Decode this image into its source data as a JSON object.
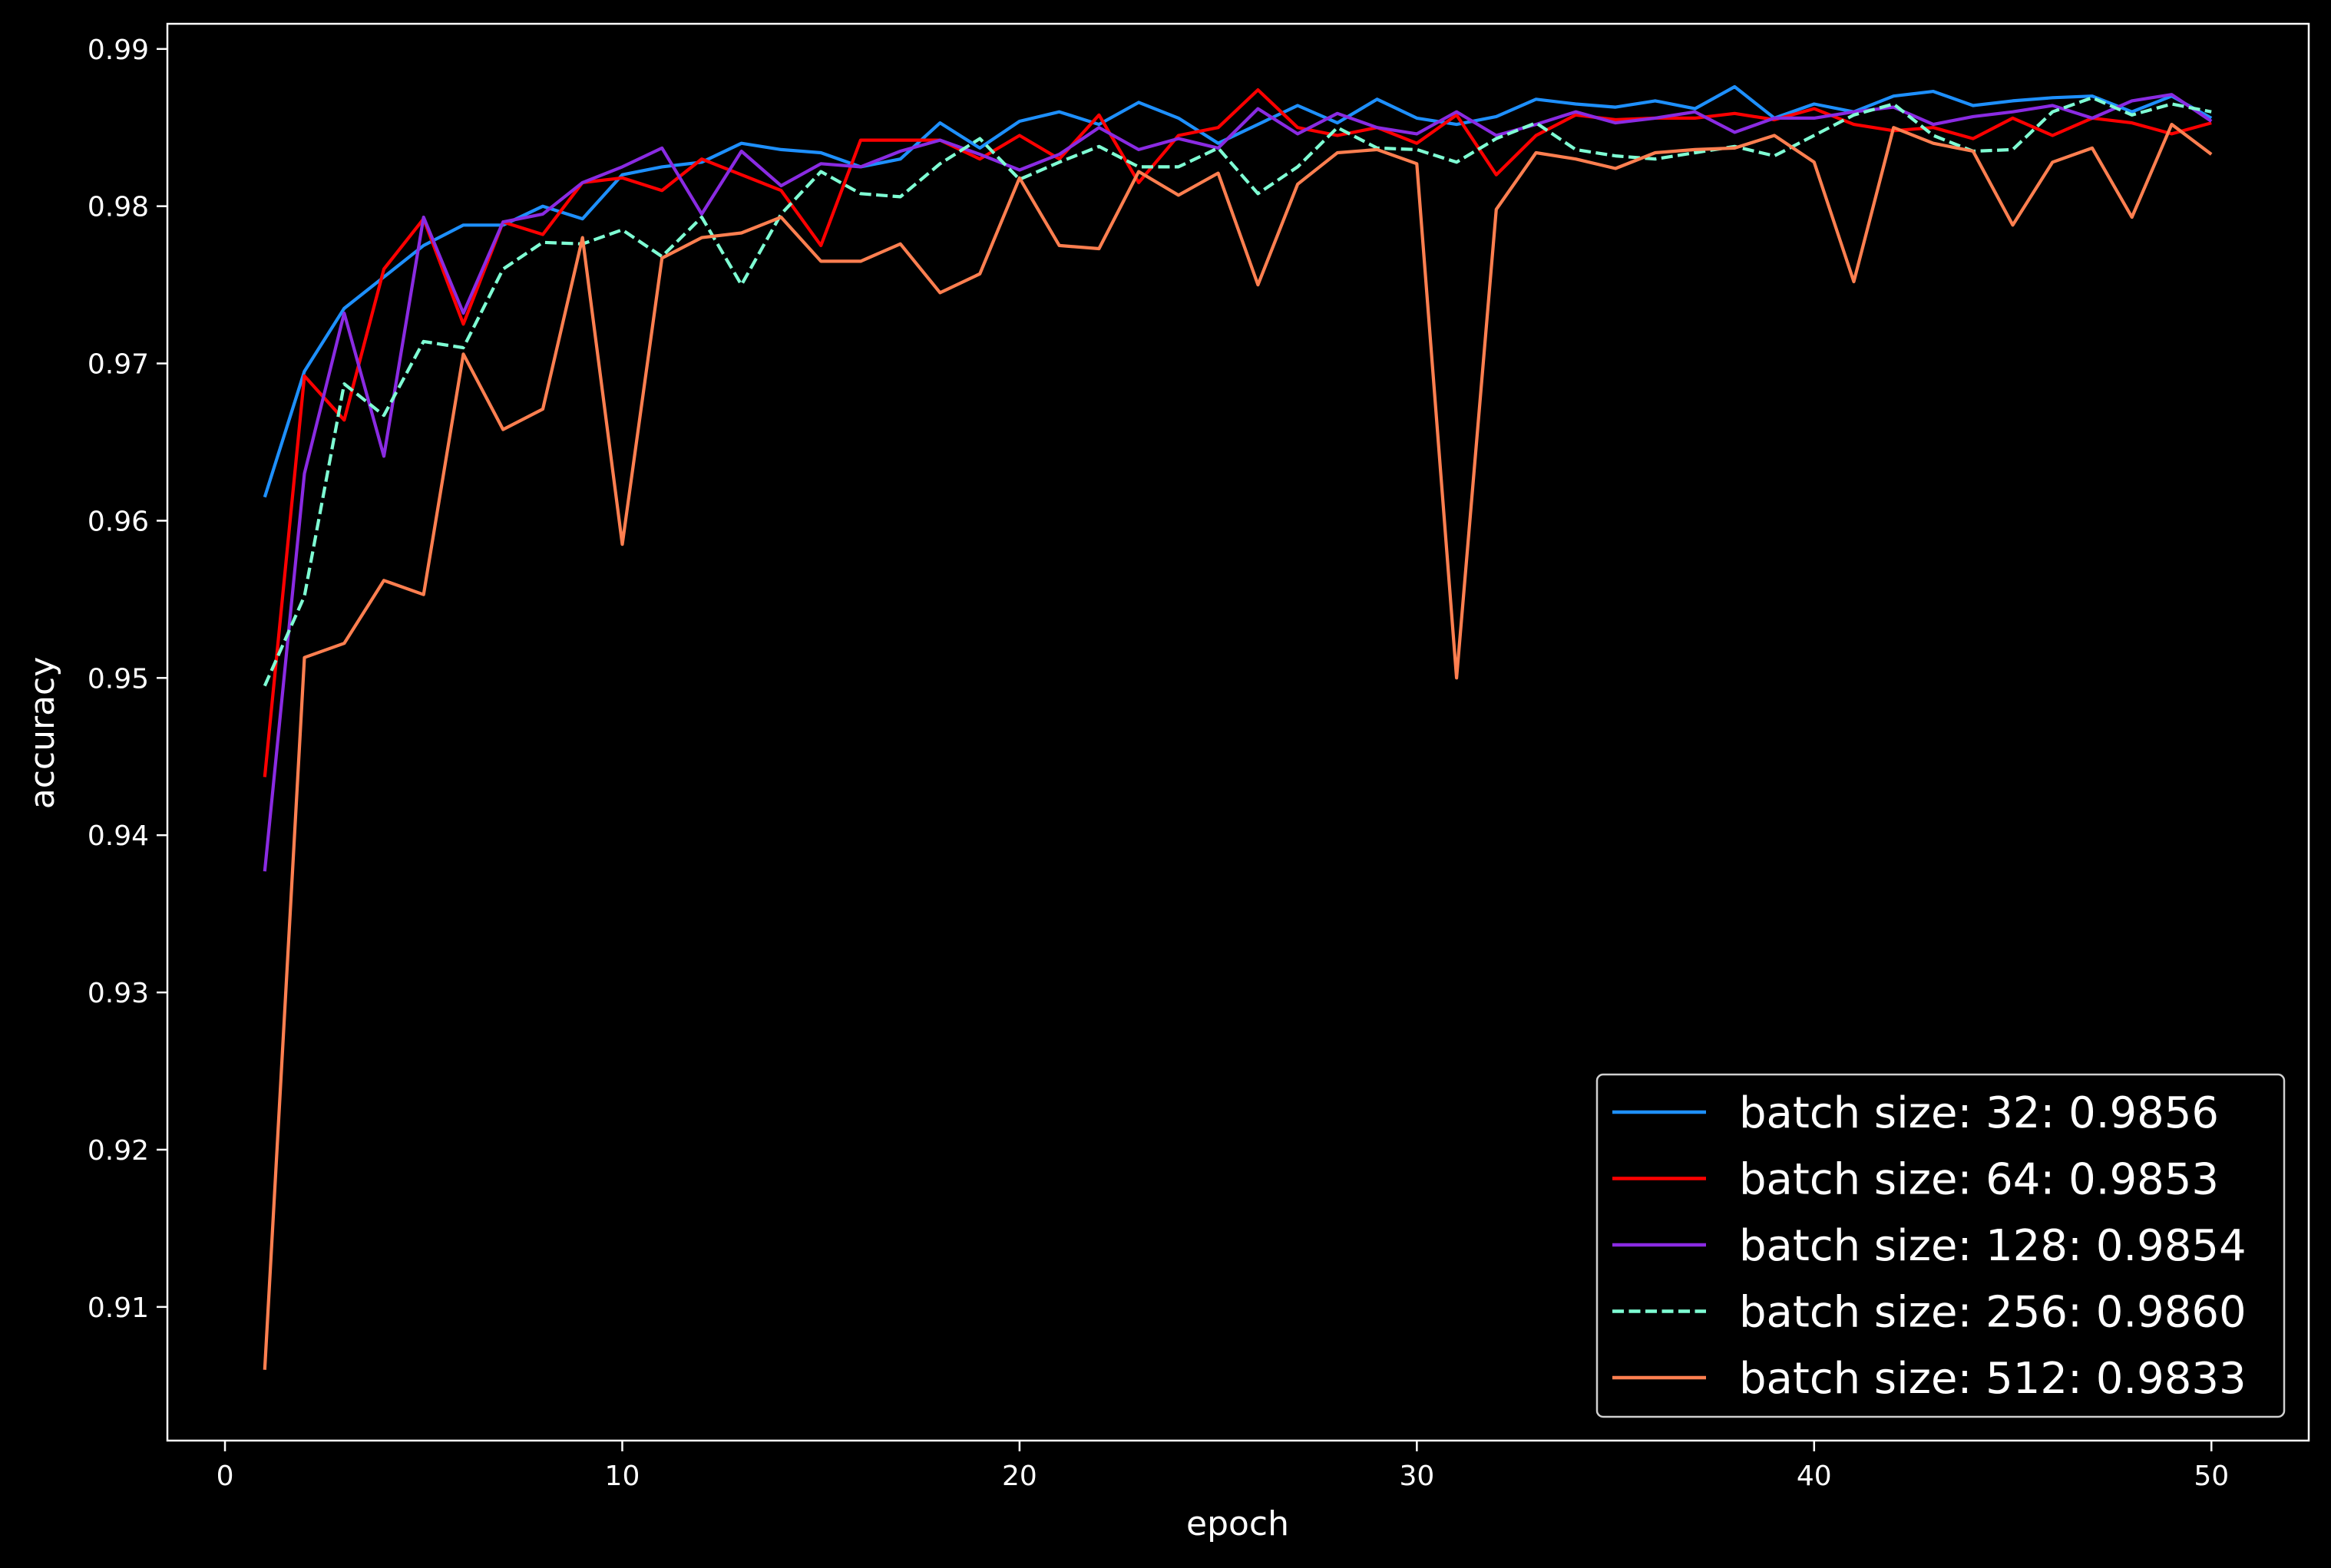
{
  "chart_data": {
    "type": "line",
    "title": "",
    "xlabel": "epoch",
    "ylabel": "accuracy",
    "xlim": [
      -1.45,
      52.45
    ],
    "ylim": [
      0.9015,
      0.9916
    ],
    "xticks": [
      0,
      10,
      20,
      30,
      40,
      50
    ],
    "xtick_labels": [
      "0",
      "10",
      "20",
      "30",
      "40",
      "50"
    ],
    "yticks": [
      0.91,
      0.92,
      0.93,
      0.94,
      0.95,
      0.96,
      0.97,
      0.98,
      0.99
    ],
    "ytick_labels": [
      "0.91",
      "0.92",
      "0.93",
      "0.94",
      "0.95",
      "0.96",
      "0.97",
      "0.98",
      "0.99"
    ],
    "grid": false,
    "background": "#000000",
    "axes_color": "#ffffff",
    "legend_position": "lower right",
    "x": [
      1,
      2,
      3,
      4,
      5,
      6,
      7,
      8,
      9,
      10,
      11,
      12,
      13,
      14,
      15,
      16,
      17,
      18,
      19,
      20,
      21,
      22,
      23,
      24,
      25,
      26,
      27,
      28,
      29,
      30,
      31,
      32,
      33,
      34,
      35,
      36,
      37,
      38,
      39,
      40,
      41,
      42,
      43,
      44,
      45,
      46,
      47,
      48,
      49,
      50
    ],
    "series": [
      {
        "name": "batch size: 32: 0.9856",
        "color": "#1e90ff",
        "dash": "solid",
        "values": [
          0.9615,
          0.9695,
          0.9735,
          0.9755,
          0.9775,
          0.9788,
          0.9788,
          0.98,
          0.9792,
          0.982,
          0.9825,
          0.9828,
          0.984,
          0.9836,
          0.9834,
          0.9825,
          0.983,
          0.9853,
          0.9837,
          0.9854,
          0.986,
          0.9852,
          0.9866,
          0.9856,
          0.984,
          0.9852,
          0.9864,
          0.9853,
          0.9868,
          0.9856,
          0.9852,
          0.9857,
          0.9868,
          0.9865,
          0.9863,
          0.9867,
          0.9862,
          0.9876,
          0.9856,
          0.9865,
          0.986,
          0.987,
          0.9873,
          0.9864,
          0.9867,
          0.9869,
          0.987,
          0.986,
          0.987,
          0.9856
        ]
      },
      {
        "name": "batch size: 64: 0.9853",
        "color": "#ff0000",
        "dash": "solid",
        "values": [
          0.9437,
          0.9692,
          0.9664,
          0.976,
          0.9792,
          0.9725,
          0.979,
          0.9782,
          0.9815,
          0.9818,
          0.981,
          0.983,
          0.982,
          0.981,
          0.9775,
          0.9842,
          0.9842,
          0.9842,
          0.983,
          0.9845,
          0.983,
          0.9858,
          0.9815,
          0.9845,
          0.985,
          0.9874,
          0.985,
          0.9845,
          0.985,
          0.984,
          0.9858,
          0.982,
          0.9845,
          0.9858,
          0.9855,
          0.9856,
          0.9856,
          0.9859,
          0.9855,
          0.9862,
          0.9852,
          0.9848,
          0.985,
          0.9843,
          0.9856,
          0.9845,
          0.9856,
          0.9853,
          0.9846,
          0.9853
        ]
      },
      {
        "name": "batch size: 128: 0.9854",
        "color": "#8a2be2",
        "dash": "solid",
        "values": [
          0.9377,
          0.963,
          0.9732,
          0.9641,
          0.9793,
          0.9732,
          0.979,
          0.9795,
          0.9815,
          0.9825,
          0.9837,
          0.9795,
          0.9835,
          0.9813,
          0.9827,
          0.9825,
          0.9835,
          0.9842,
          0.9833,
          0.9823,
          0.9833,
          0.985,
          0.9836,
          0.9843,
          0.9837,
          0.9862,
          0.9846,
          0.9859,
          0.985,
          0.9846,
          0.986,
          0.9845,
          0.9852,
          0.986,
          0.9853,
          0.9856,
          0.986,
          0.9847,
          0.9856,
          0.9856,
          0.986,
          0.9863,
          0.9852,
          0.9857,
          0.986,
          0.9864,
          0.9856,
          0.9867,
          0.9871,
          0.9854
        ]
      },
      {
        "name": "batch size: 256: 0.9860",
        "color": "#7fffd4",
        "dash": "dashed",
        "values": [
          0.9495,
          0.9552,
          0.9687,
          0.9667,
          0.9714,
          0.971,
          0.976,
          0.9777,
          0.9776,
          0.9785,
          0.9768,
          0.9793,
          0.975,
          0.9795,
          0.9822,
          0.9808,
          0.9806,
          0.9827,
          0.9843,
          0.9817,
          0.9828,
          0.9838,
          0.9825,
          0.9825,
          0.9837,
          0.9808,
          0.9825,
          0.985,
          0.9837,
          0.9836,
          0.9828,
          0.9843,
          0.9853,
          0.9836,
          0.9832,
          0.983,
          0.9834,
          0.9838,
          0.9832,
          0.9845,
          0.9858,
          0.9865,
          0.9845,
          0.9835,
          0.9836,
          0.986,
          0.9869,
          0.9858,
          0.9865,
          0.986
        ]
      },
      {
        "name": "batch size: 512: 0.9833",
        "color": "#ff7f50",
        "dash": "solid",
        "values": [
          0.906,
          0.9513,
          0.9522,
          0.9562,
          0.9553,
          0.9706,
          0.9658,
          0.9671,
          0.978,
          0.9585,
          0.9767,
          0.978,
          0.9783,
          0.9793,
          0.9765,
          0.9765,
          0.9776,
          0.9745,
          0.9757,
          0.9818,
          0.9775,
          0.9773,
          0.9822,
          0.9807,
          0.9821,
          0.975,
          0.9814,
          0.9834,
          0.9836,
          0.9827,
          0.95,
          0.9798,
          0.9834,
          0.983,
          0.9824,
          0.9834,
          0.9836,
          0.9837,
          0.9845,
          0.9828,
          0.9752,
          0.985,
          0.984,
          0.9835,
          0.9788,
          0.9828,
          0.9837,
          0.9793,
          0.9852,
          0.9833
        ]
      }
    ]
  }
}
